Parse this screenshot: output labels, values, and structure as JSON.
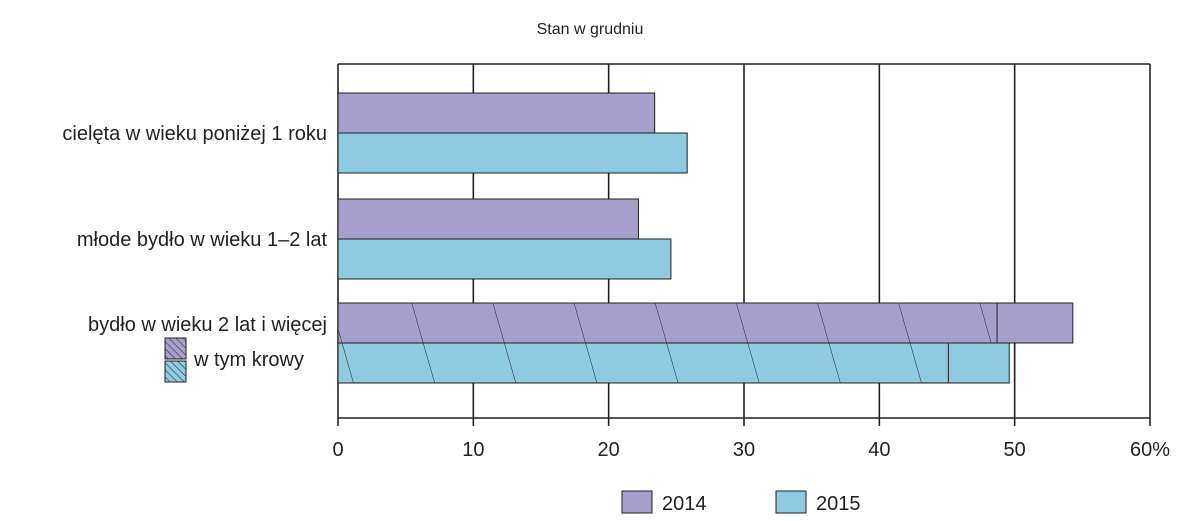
{
  "chart_data": {
    "type": "bar",
    "orientation": "horizontal",
    "title": "Stan w grudniu",
    "xlabel": "",
    "ylabel": "",
    "xlim": [
      0,
      60
    ],
    "x_ticks": [
      "0",
      "10",
      "20",
      "30",
      "40",
      "50",
      "60%"
    ],
    "grid": true,
    "legend_position": "bottom",
    "categories": [
      "cielęta w wieku poniżej 1 roku",
      "młode bydło w wieku 1–2 lat",
      "bydło w wieku 2 lat i więcej"
    ],
    "series": [
      {
        "name": "2014",
        "color": "#a79fcb",
        "values": [
          23.4,
          22.2,
          54.3
        ]
      },
      {
        "name": "2015",
        "color": "#8ecae0",
        "values": [
          25.8,
          24.6,
          49.6
        ]
      }
    ],
    "subseries": {
      "name": "w tym krowy",
      "pattern": "diagonal-hatch",
      "category": "bydło w wieku 2 lat i więcej",
      "values": {
        "2014": 48.7,
        "2015": 45.1
      }
    }
  }
}
